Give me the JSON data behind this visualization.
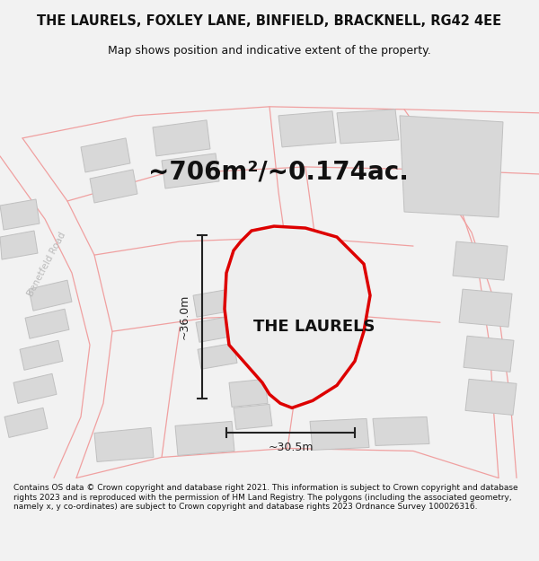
{
  "title": "THE LAURELS, FOXLEY LANE, BINFIELD, BRACKNELL, RG42 4EE",
  "subtitle": "Map shows position and indicative extent of the property.",
  "area_label": "~706m²/~0.174ac.",
  "property_label": "THE LAURELS",
  "dim_h": "~36.0m",
  "dim_w": "~30.5m",
  "footer": "Contains OS data © Crown copyright and database right 2021. This information is subject to Crown copyright and database rights 2023 and is reproduced with the permission of HM Land Registry. The polygons (including the associated geometry, namely x, y co-ordinates) are subject to Crown copyright and database rights 2023 Ordnance Survey 100026316.",
  "bg_color": "#f2f2f2",
  "map_bg": "#ffffff",
  "road_color": "#f0a0a0",
  "building_color": "#d8d8d8",
  "building_edge": "#c0c0c0",
  "property_fill": "#eeeeee",
  "property_edge": "#dd0000",
  "dim_color": "#222222",
  "title_color": "#111111",
  "footer_color": "#111111",
  "street_label_color": "#bbbbbb",
  "title_fontsize": 10.5,
  "subtitle_fontsize": 9,
  "area_fontsize": 20,
  "property_fontsize": 13,
  "dim_fontsize": 9,
  "footer_fontsize": 6.5
}
